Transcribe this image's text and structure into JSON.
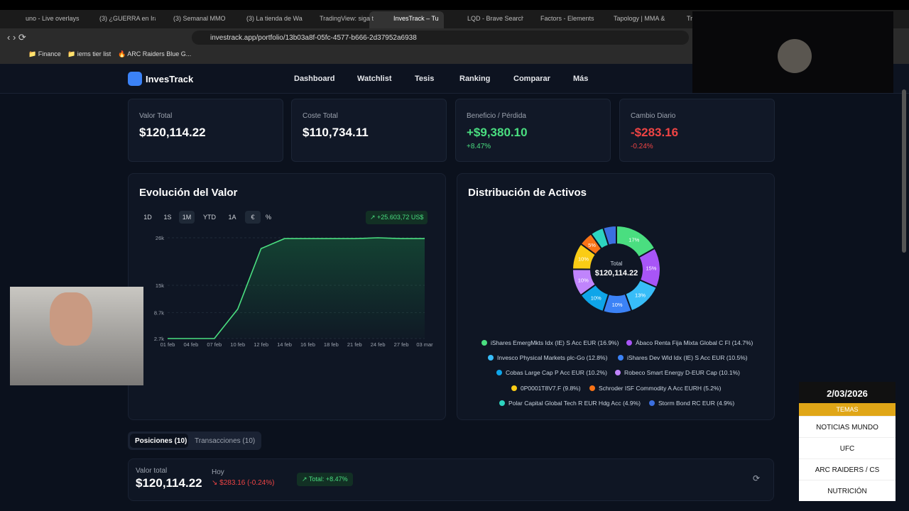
{
  "browser": {
    "tabs": [
      "uno - Live overlays",
      "(3) ¿GUERRA en Irá",
      "(3) Semanal MMO",
      "(3) La tienda de Wa",
      "TradingView: siga t",
      "InvesTrack – Tu",
      "LQD - Brave Search",
      "Factors - Elements",
      "Tapology | MMA &",
      "Trade"
    ],
    "url": "investrack.app/portfolio/13b03a8f-05fc-4577-b666-2d37952a6938",
    "bookmarks": [
      "Finance",
      "iems tier list",
      "ARC Raiders Blue G..."
    ]
  },
  "app": {
    "brand": "InvesTrack",
    "nav": [
      "Dashboard",
      "Watchlist",
      "Tesis",
      "Ranking",
      "Comparar",
      "Más"
    ],
    "cards": [
      {
        "label": "Valor Total",
        "value": "$120,114.22"
      },
      {
        "label": "Coste Total",
        "value": "$110,734.11"
      },
      {
        "label": "Beneficio / Pérdida",
        "value": "+$9,380.10",
        "change": "+8.47%"
      },
      {
        "label": "Cambio Diario",
        "value": "-$283.16",
        "change": "-0.24%"
      }
    ],
    "periods": [
      "1D",
      "1S",
      "1M",
      "YTD",
      "1A",
      "€",
      "%"
    ],
    "gain_badge": "+25.603,72 US$",
    "bottom_tabs": [
      "Posiciones (10)",
      "Transacciones (10)"
    ],
    "summary": {
      "label": "Valor total",
      "value": "$120,114.22",
      "today_label": "Hoy",
      "today": "$283.16 (-0.24%)",
      "total": "Total: +8.47%"
    }
  },
  "overlay": {
    "date": "2/03/2026",
    "header": "TEMAS",
    "items": [
      "NOTICIAS MUNDO",
      "UFC",
      "ARC RAIDERS / CS",
      "NUTRICIÓN"
    ]
  },
  "chart_data": [
    {
      "type": "line",
      "title": "Evolución del Valor",
      "categories": [
        "01 feb",
        "04 feb",
        "07 feb",
        "10 feb",
        "12 feb",
        "14 feb",
        "16 feb",
        "18 feb",
        "21 feb",
        "24 feb",
        "27 feb",
        "03 mar"
      ],
      "series": [
        {
          "name": "Valor",
          "color": "#4ade80",
          "values": [
            2700,
            2700,
            2700,
            9500,
            23500,
            25800,
            25800,
            25800,
            25800,
            26000,
            25800,
            25800
          ]
        }
      ],
      "ylim": [
        2700,
        26000
      ],
      "yticks": [
        {
          "value": 2700,
          "label": "2.7k"
        },
        {
          "value": 8700,
          "label": "8.7k"
        },
        {
          "value": 15000,
          "label": "15k"
        },
        {
          "value": 26000,
          "label": "26k"
        }
      ],
      "grid": true
    },
    {
      "type": "pie",
      "title": "Distribución de Activos",
      "center_label": "Total",
      "center_value": "$120,114.22",
      "categories": [
        "iShares EmergMkts Idx (IE) S Acc EUR (16.9%)",
        "Ábaco Renta Fija Mixta Global C FI (14.7%)",
        "Invesco Physical Markets plc-Go (12.8%)",
        "iShares Dev Wld Idx (IE) S Acc EUR (10.5%)",
        "Cobas Large Cap P Acc EUR (10.2%)",
        "Robeco Smart Energy D-EUR Cap (10.1%)",
        "0P0001T8V7.F (9.8%)",
        "Schroder ISF Commodity A Acc EURH (5.2%)",
        "Polar Capital Global Tech R EUR Hdg Acc (4.9%)",
        "Storm Bond RC EUR (4.9%)"
      ],
      "values": [
        16.9,
        14.7,
        12.8,
        10.5,
        10.2,
        10.1,
        9.8,
        5.2,
        4.9,
        4.9
      ],
      "value_labels": [
        "17%",
        "15%",
        "13%",
        "10%",
        "10%",
        "10%",
        "10%",
        "5%",
        null,
        null
      ],
      "colors": [
        "#4ade80",
        "#a855f7",
        "#38bdf8",
        "#3b82f6",
        "#0ea5e9",
        "#c084fc",
        "#facc15",
        "#f97316",
        "#2dd4bf",
        "#3b6fe0"
      ]
    }
  ]
}
